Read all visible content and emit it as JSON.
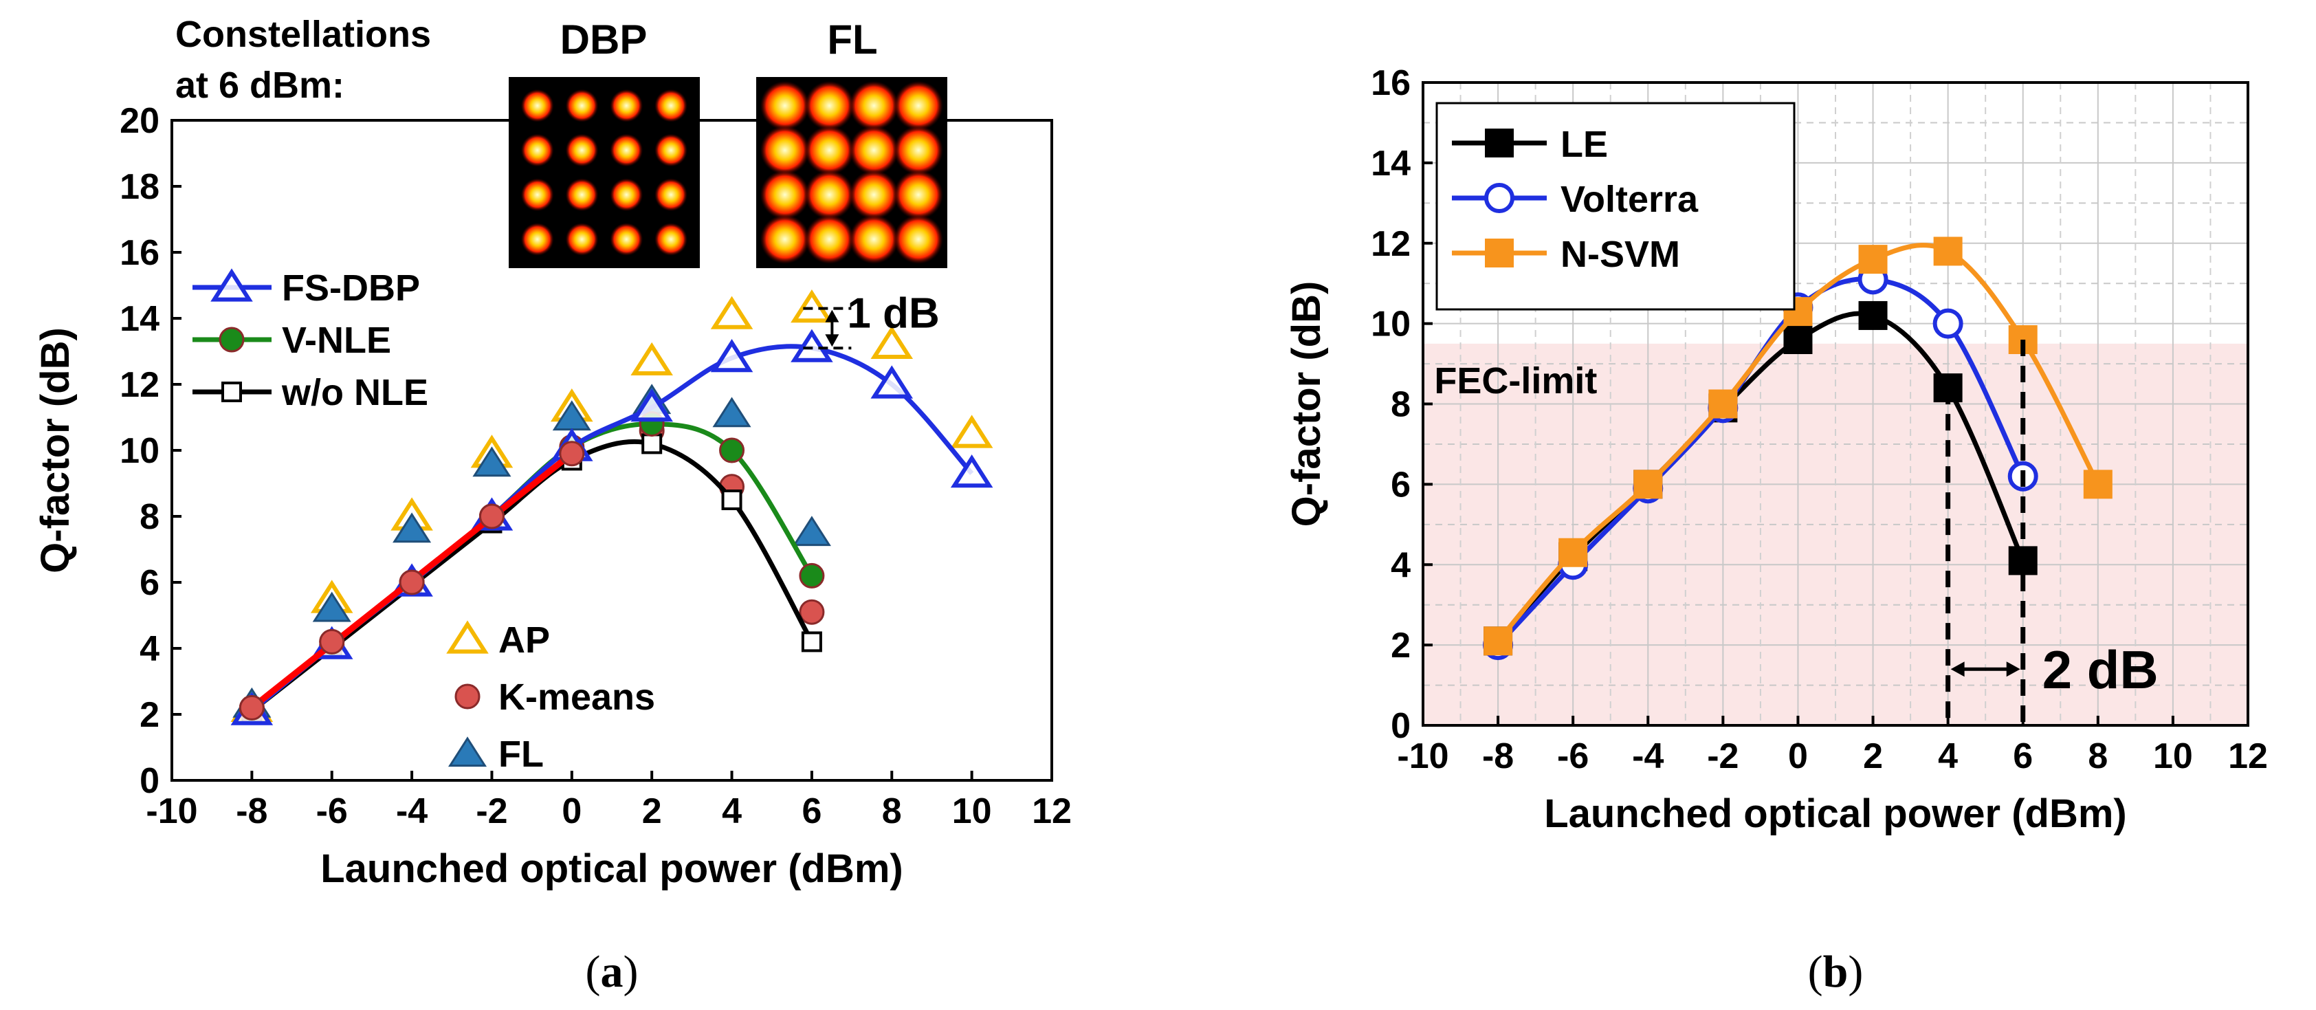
{
  "chart_data": [
    {
      "type": "line",
      "panel_label": "(a)",
      "letter": "a",
      "xlabel": "Launched optical power (dBm)",
      "ylabel": "Q-factor (dB)",
      "xlim": [
        -10,
        12
      ],
      "ylim": [
        0,
        20
      ],
      "xticks": [
        "-10",
        "-8",
        "-6",
        "-4",
        "-2",
        "0",
        "2",
        "4",
        "6",
        "8",
        "10",
        "12"
      ],
      "yticks": [
        "0",
        "2",
        "4",
        "6",
        "8",
        "10",
        "12",
        "14",
        "16",
        "18",
        "20"
      ],
      "grid": false,
      "line_series": [
        {
          "name": "FS-DBP",
          "color": "#1f2fe0",
          "marker": "open-triangle",
          "x": [
            -8,
            -6,
            -4,
            -2,
            0,
            2,
            4,
            6,
            8,
            10
          ],
          "values": [
            2.1,
            4.1,
            6.0,
            8.0,
            10.1,
            11.3,
            12.8,
            13.1,
            12.0,
            9.3
          ]
        },
        {
          "name": "V-NLE",
          "color": "#1a8a1a",
          "marker": "filled-circle",
          "x": [
            -8,
            -6,
            -4,
            -2,
            0,
            2,
            4,
            6
          ],
          "values": [
            2.1,
            4.1,
            6.0,
            8.0,
            10.1,
            10.8,
            10.0,
            6.2
          ]
        },
        {
          "name": "w/o NLE",
          "color": "#000000",
          "marker": "open-square",
          "x": [
            -8,
            -6,
            -4,
            -2,
            0,
            2,
            4,
            6
          ],
          "values": [
            2.1,
            4.0,
            5.9,
            7.8,
            9.7,
            10.2,
            8.5,
            4.2
          ]
        }
      ],
      "marker_series": [
        {
          "name": "AP",
          "color": "#f5b800",
          "marker": "open-triangle",
          "x": [
            -8,
            -6,
            -4,
            -2,
            0,
            2,
            4,
            6,
            8,
            10
          ],
          "values": [
            2.2,
            5.5,
            8.0,
            9.9,
            11.3,
            12.7,
            14.1,
            14.3,
            13.2,
            10.5
          ]
        },
        {
          "name": "K-means",
          "color": "#d9534f",
          "marker": "filled-circle",
          "x": [
            -8,
            -6,
            -4,
            -2,
            0,
            2,
            4,
            6
          ],
          "values": [
            2.2,
            4.2,
            6.0,
            8.0,
            9.9,
            10.6,
            8.9,
            5.1
          ]
        },
        {
          "name": "FL",
          "color": "#2a7ab8",
          "marker": "filled-triangle",
          "x": [
            -8,
            -6,
            -4,
            -2,
            0,
            2,
            4,
            6
          ],
          "values": [
            2.3,
            5.2,
            7.6,
            9.6,
            11.0,
            11.5,
            11.1,
            7.5
          ]
        }
      ],
      "red_fit": {
        "name": "linear fit",
        "color": "#ff0000",
        "x": [
          -8,
          0
        ],
        "values": [
          2.2,
          9.9
        ]
      },
      "annotations": {
        "constellations_title_line1": "Constellations",
        "constellations_title_line2": "at 6 dBm:",
        "constellation_dbp_label": "DBP",
        "constellation_fl_label": "FL",
        "gain_text": "1 dB"
      }
    },
    {
      "type": "line",
      "panel_label": "(b)",
      "letter": "b",
      "xlabel": "Launched optical power (dBm)",
      "ylabel": "Q-factor (dB)",
      "xlim": [
        -10,
        12
      ],
      "ylim": [
        0,
        16
      ],
      "xticks": [
        "-10",
        "-8",
        "-6",
        "-4",
        "-2",
        "0",
        "2",
        "4",
        "6",
        "8",
        "10",
        "12"
      ],
      "yticks": [
        "0",
        "2",
        "4",
        "6",
        "8",
        "10",
        "12",
        "14",
        "16"
      ],
      "grid": true,
      "fec_limit": 9.5,
      "fec_label": "FEC-limit",
      "gain_text": "2 dB",
      "line_series": [
        {
          "name": "LE",
          "color": "#000000",
          "marker": "filled-square",
          "x": [
            -8,
            -6,
            -4,
            -2,
            0,
            2,
            4,
            6
          ],
          "values": [
            2.1,
            4.2,
            6.0,
            7.9,
            9.6,
            10.2,
            8.4,
            4.1
          ]
        },
        {
          "name": "Volterra",
          "color": "#1f2fe0",
          "marker": "open-circle",
          "x": [
            -8,
            -6,
            -4,
            -2,
            0,
            2,
            4,
            6
          ],
          "values": [
            2.0,
            4.0,
            5.9,
            7.9,
            10.4,
            11.1,
            10.0,
            6.2
          ]
        },
        {
          "name": "N-SVM",
          "color": "#f7941d",
          "marker": "filled-square",
          "x": [
            -8,
            -6,
            -4,
            -2,
            0,
            2,
            4,
            6,
            8
          ],
          "values": [
            2.1,
            4.3,
            6.0,
            8.0,
            10.3,
            11.6,
            11.8,
            9.6,
            6.0
          ]
        }
      ]
    }
  ],
  "colors": {
    "fec_band": "#fbe6e6",
    "fec_text": "#f2a6a6",
    "gain_red": "#ee1c1c",
    "constellation_orange": "#f5b800"
  }
}
